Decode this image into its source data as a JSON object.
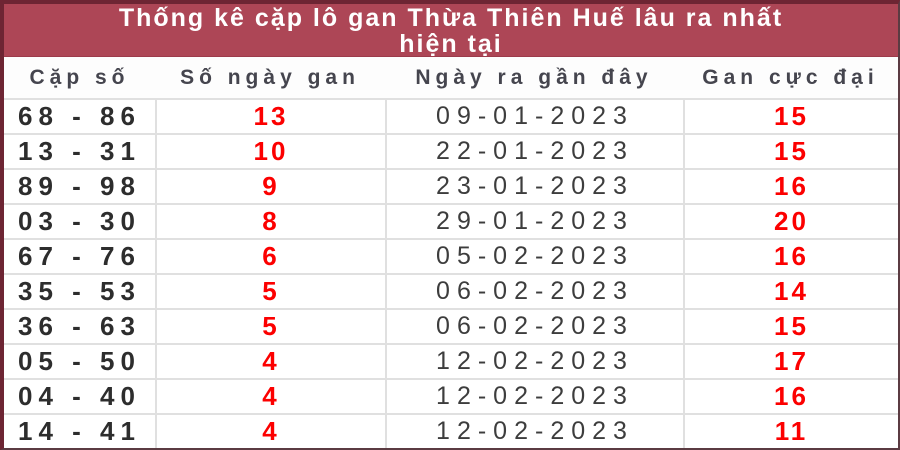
{
  "title_line1": "Thống kê cặp lô gan Thừa Thiên Huế lâu ra nhất",
  "title_line2": "hiện tại",
  "table": {
    "columns": [
      "Cặp số",
      "Số ngày gan",
      "Ngày ra gần đây",
      "Gan cực đại"
    ],
    "rows": [
      {
        "pair": "68 - 86",
        "days": "13",
        "date": "09-01-2023",
        "max": "15"
      },
      {
        "pair": "13 - 31",
        "days": "10",
        "date": "22-01-2023",
        "max": "15"
      },
      {
        "pair": "89 - 98",
        "days": "9",
        "date": "23-01-2023",
        "max": "16"
      },
      {
        "pair": "03 - 30",
        "days": "8",
        "date": "29-01-2023",
        "max": "20"
      },
      {
        "pair": "67 - 76",
        "days": "6",
        "date": "05-02-2023",
        "max": "16"
      },
      {
        "pair": "35 - 53",
        "days": "5",
        "date": "06-02-2023",
        "max": "14"
      },
      {
        "pair": "36 - 63",
        "days": "5",
        "date": "06-02-2023",
        "max": "15"
      },
      {
        "pair": "05 - 50",
        "days": "4",
        "date": "12-02-2023",
        "max": "17"
      },
      {
        "pair": "04 - 40",
        "days": "4",
        "date": "12-02-2023",
        "max": "16"
      },
      {
        "pair": "14 - 41",
        "days": "4",
        "date": "12-02-2023",
        "max": "11"
      }
    ]
  },
  "colors": {
    "band": "#ad4656",
    "border": "#6d2533",
    "red": "#fc0000",
    "headtxt": "#45454e",
    "pairtxt": "#2d2d2d",
    "datetxt": "#3d3d3d",
    "sep": "#e0e0e0"
  }
}
